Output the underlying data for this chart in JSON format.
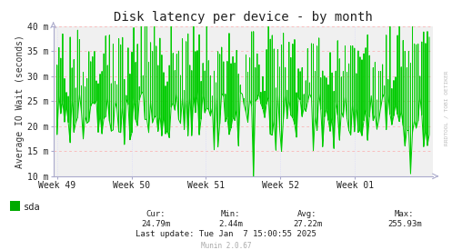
{
  "title": "Disk latency per device - by month",
  "ylabel": "Average IO Wait (seconds)",
  "background_color": "#FFFFFF",
  "plot_bg_color": "#F0F0F0",
  "grid_color_major": "#FF9999",
  "grid_color_minor": "#CCCCFF",
  "line_color": "#00CC00",
  "ylim": [
    0.01,
    0.04
  ],
  "yticks": [
    0.01,
    0.015,
    0.02,
    0.025,
    0.03,
    0.035,
    0.04
  ],
  "ytick_labels": [
    "10 m",
    "15 m",
    "20 m",
    "25 m",
    "30 m",
    "35 m",
    "40 m"
  ],
  "xtick_labels": [
    "Week 49",
    "Week 50",
    "Week 51",
    "Week 52",
    "Week 01"
  ],
  "xtick_positions": [
    0.0,
    0.2,
    0.4,
    0.6,
    0.8
  ],
  "legend_label": "sda",
  "legend_color": "#00AA00",
  "cur": "24.79m",
  "min_val": "2.44m",
  "avg": "27.22m",
  "max_val": "255.93m",
  "last_update": "Last update: Tue Jan  7 15:00:55 2025",
  "munin_version": "Munin 2.0.67",
  "watermark": "RRDTOOL / TOBI OETIKER",
  "title_fontsize": 10,
  "axis_label_fontsize": 7,
  "tick_fontsize": 7,
  "legend_fontsize": 7.5,
  "footer_fontsize": 6.5,
  "n_spikes": 200,
  "seed": 42
}
